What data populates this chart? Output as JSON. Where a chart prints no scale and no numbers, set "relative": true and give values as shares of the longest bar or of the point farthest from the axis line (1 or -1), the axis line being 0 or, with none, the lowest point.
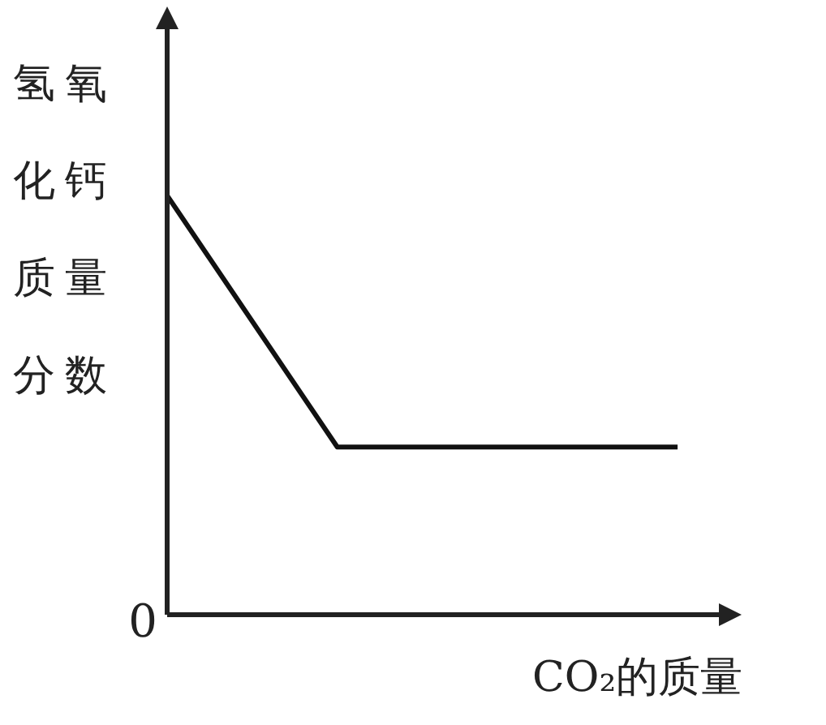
{
  "chart_data": {
    "type": "line",
    "relative": true,
    "xlabel": "CO₂的质量",
    "ylabel": "氢氧化钙质量分数",
    "categories": [
      null,
      null,
      null,
      null
    ],
    "series": [
      {
        "color": "#111111",
        "values": [
          1,
          0.4,
          0.4,
          0.4
        ]
      }
    ],
    "annotations": [
      "0"
    ],
    "marker": "none",
    "line_style": "solid",
    "grid": false,
    "legend": false
  }
}
